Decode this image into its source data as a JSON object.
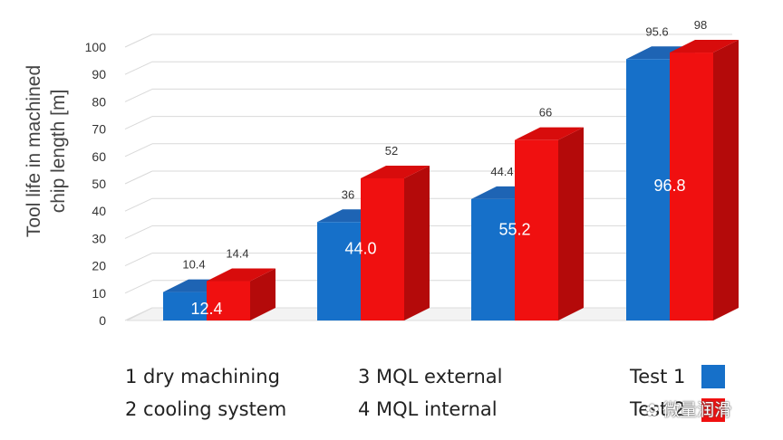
{
  "chart_data": {
    "type": "bar",
    "ylabel_lines": [
      "Tool life in machined",
      "chip length [m]"
    ],
    "ylim": [
      0,
      100
    ],
    "yticks": [
      0,
      10,
      20,
      30,
      40,
      50,
      60,
      70,
      80,
      90,
      100
    ],
    "categories": [
      "1",
      "2",
      "3",
      "4"
    ],
    "series": [
      {
        "name": "Test 1",
        "color": "#1670c9",
        "side_color": "#0f56a0",
        "top_color": "#1e64b4",
        "values": [
          10.4,
          36,
          44.4,
          95.6
        ],
        "labels": [
          "10.4",
          "36",
          "44.4",
          "95.6"
        ]
      },
      {
        "name": "Test 2",
        "color": "#f01010",
        "side_color": "#b40a0a",
        "top_color": "#d80c0c",
        "values": [
          14.4,
          52,
          66,
          98
        ],
        "labels": [
          "14.4",
          "52",
          "66",
          "98"
        ]
      }
    ],
    "average_labels": [
      "12.4",
      "44.0",
      "55.2",
      "96.8"
    ],
    "grid": true
  },
  "legend": {
    "categories": [
      "1 dry machining",
      "2 cooling system",
      "3 MQL external",
      "4 MQL internal"
    ],
    "series": [
      "Test 1",
      "Test 2"
    ]
  },
  "watermark": {
    "text": "微量润滑"
  }
}
